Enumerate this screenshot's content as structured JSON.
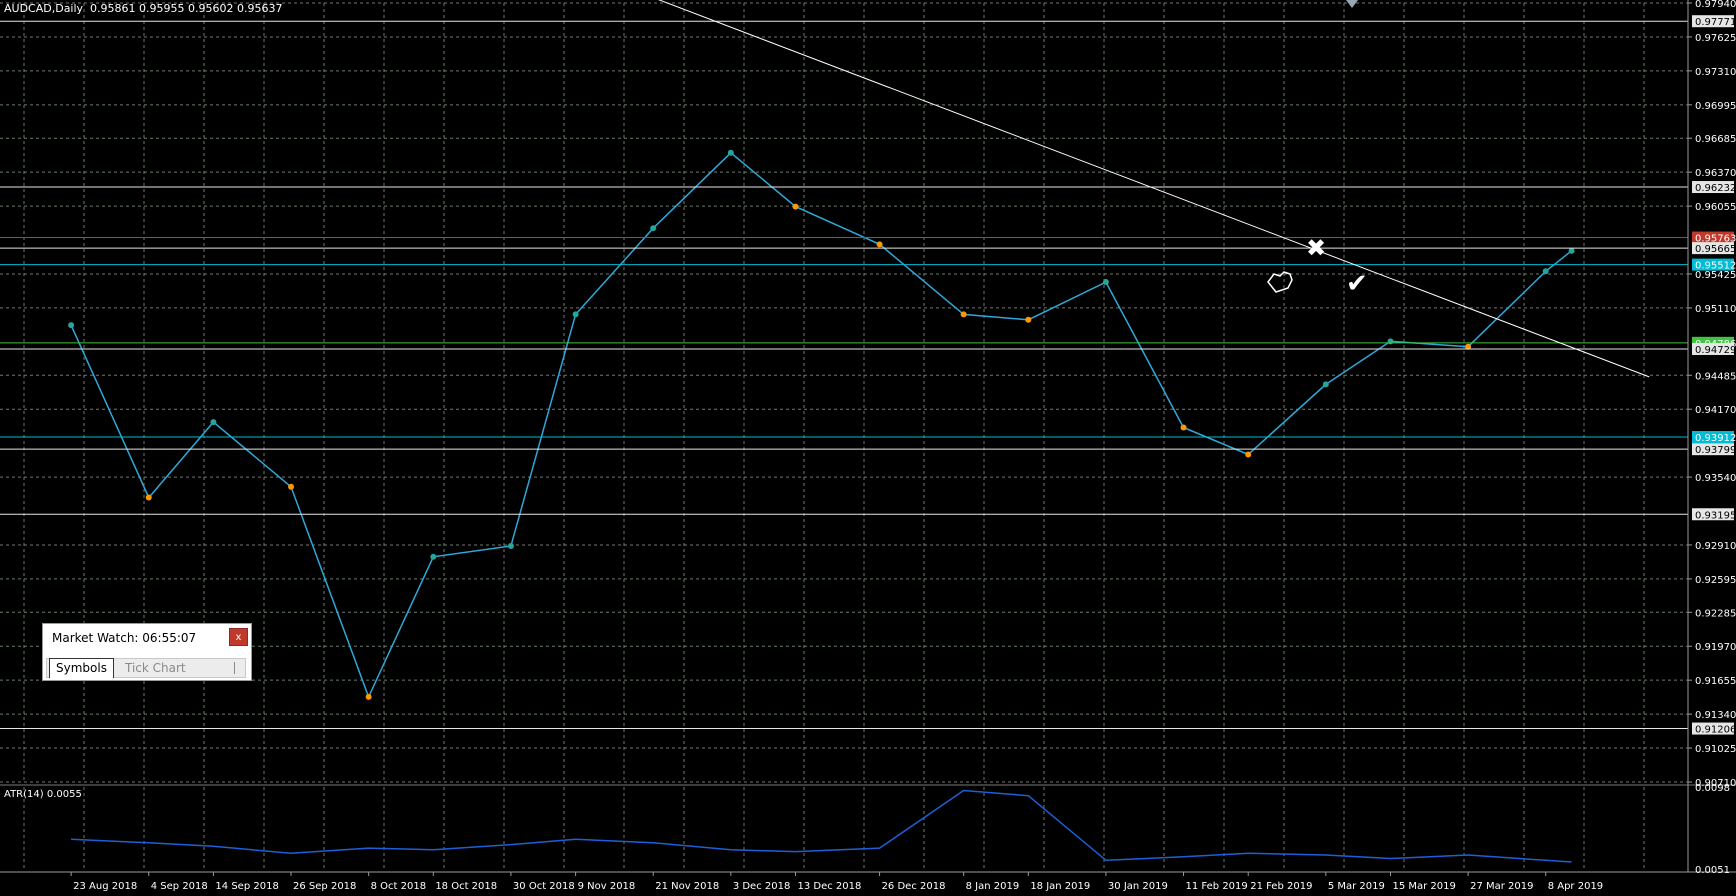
{
  "window": {
    "symbol_header": "AUDCAD,Daily  0.95861 0.95955 0.95602 0.95637",
    "atr_header": "ATR(14) 0.0055"
  },
  "market_watch": {
    "title": "Market Watch: 06:55:07",
    "close_label": "x",
    "tabs": [
      "Symbols",
      "Tick Chart"
    ]
  },
  "colors": {
    "background": "#000000",
    "grid": "#6b7d6b",
    "bull_candle": "#26a69a",
    "bear_candle": "#ff9800",
    "bollinger": "#2e8b2e",
    "ma_fast": "#c8c81e",
    "ma_slow": "#2ea8d8",
    "atr_line": "#1e5fd8",
    "trendline": "#ffffff",
    "price_label_active": "#c0392b",
    "price_label_cyan": "#00bcd4",
    "price_label_green": "#3ec43e"
  },
  "chart_data": {
    "type": "candlestick",
    "symbol": "AUDCAD",
    "timeframe": "Daily",
    "ohlc_header": {
      "open": 0.95861,
      "high": 0.95955,
      "low": 0.95602,
      "close": 0.95637
    },
    "ylim": [
      0.9071,
      0.9794
    ],
    "y_ticks": [
      "0.97940",
      "0.97625",
      "0.97310",
      "0.96995",
      "0.96685",
      "0.96370",
      "0.96055",
      "0.95425",
      "0.95110",
      "0.94485",
      "0.94170",
      "0.93540",
      "0.92910",
      "0.92595",
      "0.92285",
      "0.91970",
      "0.91655",
      "0.91340",
      "0.91025",
      "0.90710"
    ],
    "x_ticks": [
      "23 Aug 2018",
      "4 Sep 2018",
      "14 Sep 2018",
      "26 Sep 2018",
      "8 Oct 2018",
      "18 Oct 2018",
      "30 Oct 2018",
      "9 Nov 2018",
      "21 Nov 2018",
      "3 Dec 2018",
      "13 Dec 2018",
      "26 Dec 2018",
      "8 Jan 2019",
      "18 Jan 2019",
      "30 Jan 2019",
      "11 Feb 2019",
      "21 Feb 2019",
      "5 Mar 2019",
      "15 Mar 2019",
      "27 Mar 2019",
      "8 Apr 2019"
    ],
    "horizontal_levels": [
      {
        "price": 0.97771,
        "label": "0.97771",
        "color": "white"
      },
      {
        "price": 0.96232,
        "label": "0.96232",
        "color": "white"
      },
      {
        "price": 0.95763,
        "label": "0.95763",
        "color": "red"
      },
      {
        "price": 0.95665,
        "label": "0.95665",
        "color": "white"
      },
      {
        "price": 0.95512,
        "label": "0.95512",
        "color": "cyan"
      },
      {
        "price": 0.94786,
        "label": "0.94786",
        "color": "green"
      },
      {
        "price": 0.94729,
        "label": "0.94729",
        "color": "white"
      },
      {
        "price": 0.93912,
        "label": "0.93912",
        "color": "cyan"
      },
      {
        "price": 0.93799,
        "label": "0.93799",
        "color": "white"
      },
      {
        "price": 0.93195,
        "label": "0.93195",
        "color": "white"
      },
      {
        "price": 0.91206,
        "label": "0.91206",
        "color": "white"
      }
    ],
    "trendline": {
      "from": {
        "date": "21 Nov 2018",
        "price": 0.9799
      },
      "to": {
        "date": "24 Apr 2019",
        "price": 0.9447
      }
    },
    "close_series": {
      "x": [
        "23 Aug 2018",
        "4 Sep 2018",
        "14 Sep 2018",
        "26 Sep 2018",
        "8 Oct 2018",
        "18 Oct 2018",
        "30 Oct 2018",
        "9 Nov 2018",
        "21 Nov 2018",
        "3 Dec 2018",
        "13 Dec 2018",
        "26 Dec 2018",
        "8 Jan 2019",
        "18 Jan 2019",
        "30 Jan 2019",
        "11 Feb 2019",
        "21 Feb 2019",
        "5 Mar 2019",
        "15 Mar 2019",
        "27 Mar 2019",
        "8 Apr 2019",
        "12 Apr 2019"
      ],
      "values": [
        0.9495,
        0.9335,
        0.9405,
        0.9345,
        0.915,
        0.928,
        0.929,
        0.9505,
        0.9585,
        0.9655,
        0.9605,
        0.957,
        0.9505,
        0.95,
        0.9535,
        0.94,
        0.9375,
        0.944,
        0.948,
        0.9475,
        0.9545,
        0.9564
      ]
    },
    "atr": {
      "name": "ATR(14)",
      "current": 0.0055,
      "ylim": [
        0.0051,
        0.0098
      ],
      "y_ticks": [
        "0.0098",
        "0.0051"
      ],
      "x": [
        "23 Aug 2018",
        "4 Sep 2018",
        "14 Sep 2018",
        "26 Sep 2018",
        "8 Oct 2018",
        "18 Oct 2018",
        "30 Oct 2018",
        "9 Nov 2018",
        "21 Nov 2018",
        "3 Dec 2018",
        "13 Dec 2018",
        "26 Dec 2018",
        "8 Jan 2019",
        "18 Jan 2019",
        "30 Jan 2019",
        "11 Feb 2019",
        "21 Feb 2019",
        "5 Mar 2019",
        "15 Mar 2019",
        "27 Mar 2019",
        "8 Apr 2019",
        "12 Apr 2019"
      ],
      "values": [
        0.0068,
        0.0066,
        0.0064,
        0.006,
        0.0063,
        0.0062,
        0.0065,
        0.0068,
        0.0066,
        0.0062,
        0.0061,
        0.0063,
        0.0096,
        0.0093,
        0.0056,
        0.0058,
        0.006,
        0.0059,
        0.0057,
        0.0059,
        0.0056,
        0.0055
      ]
    }
  }
}
